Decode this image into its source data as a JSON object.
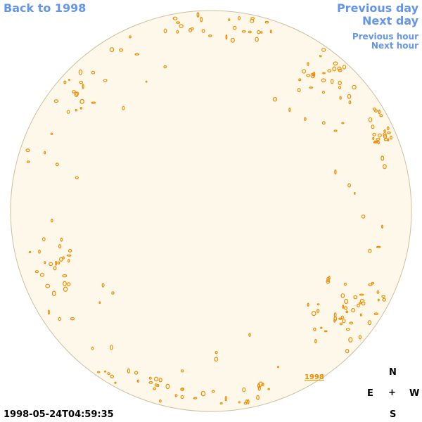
{
  "nav": {
    "back": "Back to 1998",
    "previous_day": "Previous day",
    "next_day": "Next day",
    "previous_hour": "Previous hour",
    "next_hour": "Next hour"
  },
  "timestamp": "1998-05-24T04:59:35",
  "image_label": "1998",
  "compass": {
    "north": "N",
    "east": "E",
    "center": "+",
    "west": "W",
    "south": "S"
  }
}
